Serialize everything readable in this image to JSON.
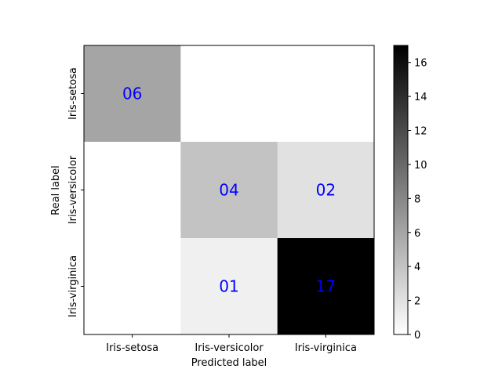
{
  "chart_data": {
    "type": "heatmap",
    "title": "",
    "xlabel": "Predicted label",
    "ylabel": "Real label",
    "x_categories": [
      "Iris-setosa",
      "Iris-versicolor",
      "Iris-virginica"
    ],
    "y_categories": [
      "Iris-setosa",
      "Iris-versicolor",
      "Iris-virginica"
    ],
    "matrix": [
      [
        6,
        0,
        0
      ],
      [
        0,
        4,
        2
      ],
      [
        0,
        1,
        17
      ]
    ],
    "cell_labels": [
      [
        "06",
        "",
        ""
      ],
      [
        "",
        "04",
        "02"
      ],
      [
        "",
        "01",
        "17"
      ]
    ],
    "colormap": "gray_r",
    "colorbar": {
      "min": 0,
      "max": 17,
      "ticks": [
        0,
        2,
        4,
        6,
        8,
        10,
        12,
        14,
        16
      ]
    },
    "annotation_color": "#0000ff",
    "grid": false
  }
}
